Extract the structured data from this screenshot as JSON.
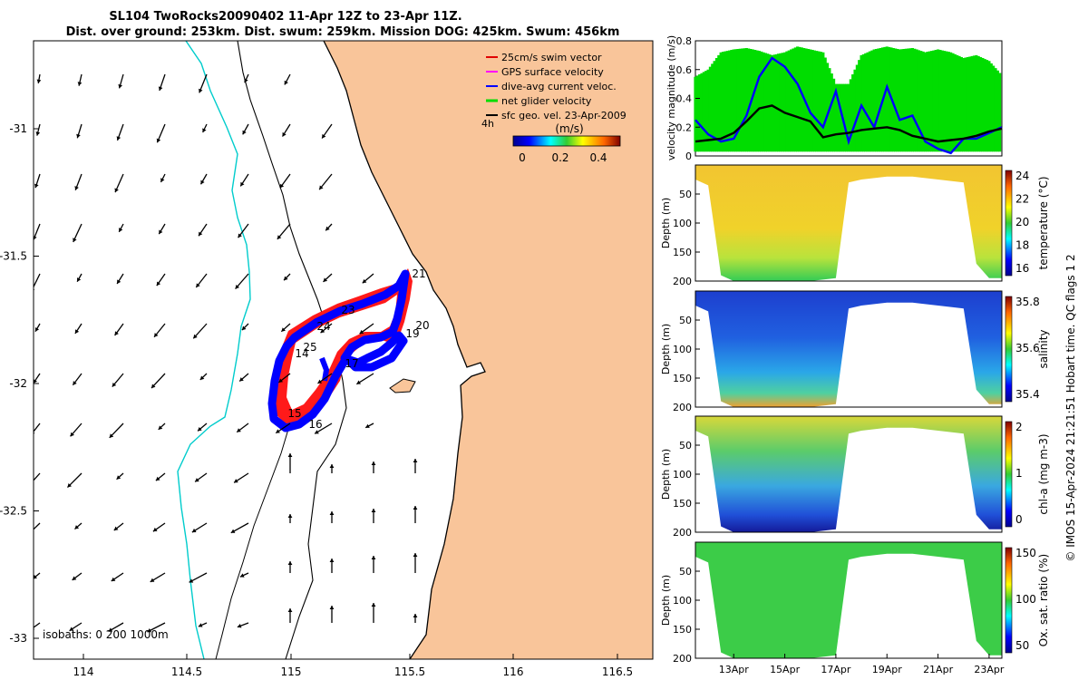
{
  "title": {
    "line1": "SL104 TwoRocks20090402 11-Apr 12Z to 23-Apr 11Z.",
    "line2": "Dist. over ground: 253km. Dist. swum: 259km. Mission DOG: 425km. Swum: 456km"
  },
  "colors": {
    "land": "#f9c59a",
    "swim_vector": "#e00000",
    "gps_velocity": "#ff00ff",
    "dive_avg": "#0000ff",
    "net_glider": "#00dd00",
    "sfc_vel": "#000000",
    "isobath_0": "#000000",
    "isobath_200": "#000000",
    "isobath_1000": "#00cccc"
  },
  "map": {
    "x_ticks": [
      "114",
      "114.5",
      "115",
      "115.5",
      "116",
      "116.5"
    ],
    "y_ticks": [
      "-31",
      "-31.5",
      "-32",
      "-32.5",
      "-33"
    ],
    "legend": [
      "25cm/s swim vector",
      "GPS surface velocity",
      "dive-avg current veloc.",
      "net glider velocity",
      "sfc geo. vel. 23-Apr-2009"
    ],
    "legend_note": "4h",
    "colorbar_label": "(m/s)",
    "colorbar_ticks": [
      "0",
      "0.2",
      "0.4"
    ],
    "isobaths_note": "isobaths: 0   200  1000m",
    "day_labels": [
      "21",
      "23",
      "24",
      "20",
      "19",
      "25",
      "14",
      "17",
      "15",
      "16"
    ]
  },
  "side_note": "© IMOS 15-Apr-2024 21:21:51 Hobart time. QC flags 1  2",
  "chart_data": [
    {
      "type": "line",
      "title": "",
      "ylabel": "velocity magnitude (m/s)",
      "ylim": [
        0,
        0.8
      ],
      "y_ticks": [
        "0",
        "0.2",
        "0.4",
        "0.6",
        "0.8"
      ],
      "x_ticks": [
        "13Apr",
        "15Apr",
        "17Apr",
        "19Apr",
        "21Apr",
        "23Apr"
      ],
      "xlim": [
        11.5,
        23.5
      ],
      "series": [
        {
          "name": "net glider velocity",
          "color": "#00dd00",
          "x": [
            11.5,
            12.0,
            12.5,
            13.0,
            13.5,
            14.0,
            14.5,
            15.0,
            15.5,
            16.0,
            16.5,
            17.0,
            17.5,
            18.0,
            18.5,
            19.0,
            19.5,
            20.0,
            20.5,
            21.0,
            21.5,
            22.0,
            22.5,
            23.0,
            23.5
          ],
          "y": [
            0.55,
            0.6,
            0.72,
            0.74,
            0.75,
            0.73,
            0.7,
            0.72,
            0.76,
            0.74,
            0.72,
            0.5,
            0.5,
            0.7,
            0.74,
            0.76,
            0.74,
            0.75,
            0.72,
            0.74,
            0.72,
            0.68,
            0.7,
            0.66,
            0.56
          ]
        },
        {
          "name": "dive-avg current veloc.",
          "color": "#0000ff",
          "x": [
            11.5,
            12.0,
            12.5,
            13.0,
            13.5,
            14.0,
            14.5,
            15.0,
            15.5,
            16.0,
            16.5,
            17.0,
            17.5,
            18.0,
            18.5,
            19.0,
            19.5,
            20.0,
            20.5,
            21.0,
            21.5,
            22.0,
            22.5,
            23.0,
            23.5
          ],
          "y": [
            0.25,
            0.15,
            0.1,
            0.12,
            0.28,
            0.55,
            0.68,
            0.62,
            0.5,
            0.3,
            0.2,
            0.45,
            0.1,
            0.35,
            0.2,
            0.48,
            0.25,
            0.28,
            0.1,
            0.05,
            0.02,
            0.12,
            0.12,
            0.16,
            0.2
          ]
        },
        {
          "name": "sfc geo. vel. 23-Apr-2009",
          "color": "#000000",
          "x": [
            11.5,
            12.0,
            12.5,
            13.0,
            13.5,
            14.0,
            14.5,
            15.0,
            15.5,
            16.0,
            16.5,
            17.0,
            17.5,
            18.0,
            18.5,
            19.0,
            19.5,
            20.0,
            20.5,
            21.0,
            21.5,
            22.0,
            22.5,
            23.0,
            23.5
          ],
          "y": [
            0.1,
            0.11,
            0.12,
            0.16,
            0.24,
            0.33,
            0.35,
            0.3,
            0.27,
            0.24,
            0.13,
            0.15,
            0.16,
            0.18,
            0.19,
            0.2,
            0.18,
            0.14,
            0.12,
            0.1,
            0.11,
            0.12,
            0.14,
            0.17,
            0.19
          ]
        }
      ]
    },
    {
      "type": "area",
      "title": "",
      "ylabel": "Depth (m)",
      "colorbar_label": "temperature (°C)",
      "colorbar_ticks": [
        "16",
        "18",
        "20",
        "22",
        "24"
      ],
      "y_ticks": [
        "50",
        "100",
        "150",
        "200"
      ],
      "ylim": [
        200,
        0
      ],
      "xlim": [
        11.5,
        23.5
      ],
      "series": [
        {
          "name": "",
          "x": [
            11.5,
            12.0,
            12.5,
            13.0,
            14.0,
            15.0,
            16.0,
            17.0,
            17.5,
            18.0,
            19.0,
            20.0,
            21.0,
            22.0,
            22.5,
            23.0,
            23.5
          ],
          "y": [
            25,
            35,
            190,
            200,
            200,
            200,
            200,
            195,
            30,
            25,
            20,
            20,
            25,
            30,
            170,
            195,
            195
          ]
        }
      ]
    },
    {
      "type": "area",
      "title": "",
      "ylabel": "Depth (m)",
      "colorbar_label": "salinity",
      "colorbar_ticks": [
        "35.4",
        "35.6",
        "35.8"
      ],
      "y_ticks": [
        "50",
        "100",
        "150",
        "200"
      ],
      "ylim": [
        200,
        0
      ],
      "xlim": [
        11.5,
        23.5
      ],
      "series": [
        {
          "name": "",
          "x": [
            11.5,
            12.0,
            12.5,
            13.0,
            14.0,
            15.0,
            16.0,
            17.0,
            17.5,
            18.0,
            19.0,
            20.0,
            21.0,
            22.0,
            22.5,
            23.0,
            23.5
          ],
          "y": [
            25,
            35,
            190,
            200,
            200,
            200,
            200,
            195,
            30,
            25,
            20,
            20,
            25,
            30,
            170,
            195,
            195
          ]
        }
      ]
    },
    {
      "type": "area",
      "title": "",
      "ylabel": "Depth (m)",
      "colorbar_label": "chl-a (mg m-3)",
      "colorbar_ticks": [
        "0",
        "1",
        "2"
      ],
      "y_ticks": [
        "50",
        "100",
        "150",
        "200"
      ],
      "ylim": [
        200,
        0
      ],
      "xlim": [
        11.5,
        23.5
      ],
      "series": [
        {
          "name": "",
          "x": [
            11.5,
            12.0,
            12.5,
            13.0,
            14.0,
            15.0,
            16.0,
            17.0,
            17.5,
            18.0,
            19.0,
            20.0,
            21.0,
            22.0,
            22.5,
            23.0,
            23.5
          ],
          "y": [
            25,
            35,
            190,
            200,
            200,
            200,
            200,
            195,
            30,
            25,
            20,
            20,
            25,
            30,
            170,
            195,
            195
          ]
        }
      ]
    },
    {
      "type": "area",
      "title": "",
      "ylabel": "Depth (m)",
      "colorbar_label": "Ox. sat. ratio (%)",
      "colorbar_ticks": [
        "50",
        "100",
        "150"
      ],
      "y_ticks": [
        "50",
        "100",
        "150",
        "200"
      ],
      "x_ticks": [
        "13Apr",
        "15Apr",
        "17Apr",
        "19Apr",
        "21Apr",
        "23Apr"
      ],
      "ylim": [
        200,
        0
      ],
      "xlim": [
        11.5,
        23.5
      ],
      "series": [
        {
          "name": "",
          "x": [
            11.5,
            12.0,
            12.5,
            13.0,
            14.0,
            15.0,
            16.0,
            17.0,
            17.5,
            18.0,
            19.0,
            20.0,
            21.0,
            22.0,
            22.5,
            23.0,
            23.5
          ],
          "y": [
            25,
            35,
            190,
            200,
            200,
            200,
            200,
            195,
            30,
            25,
            20,
            20,
            25,
            30,
            170,
            195,
            195
          ]
        }
      ]
    }
  ]
}
